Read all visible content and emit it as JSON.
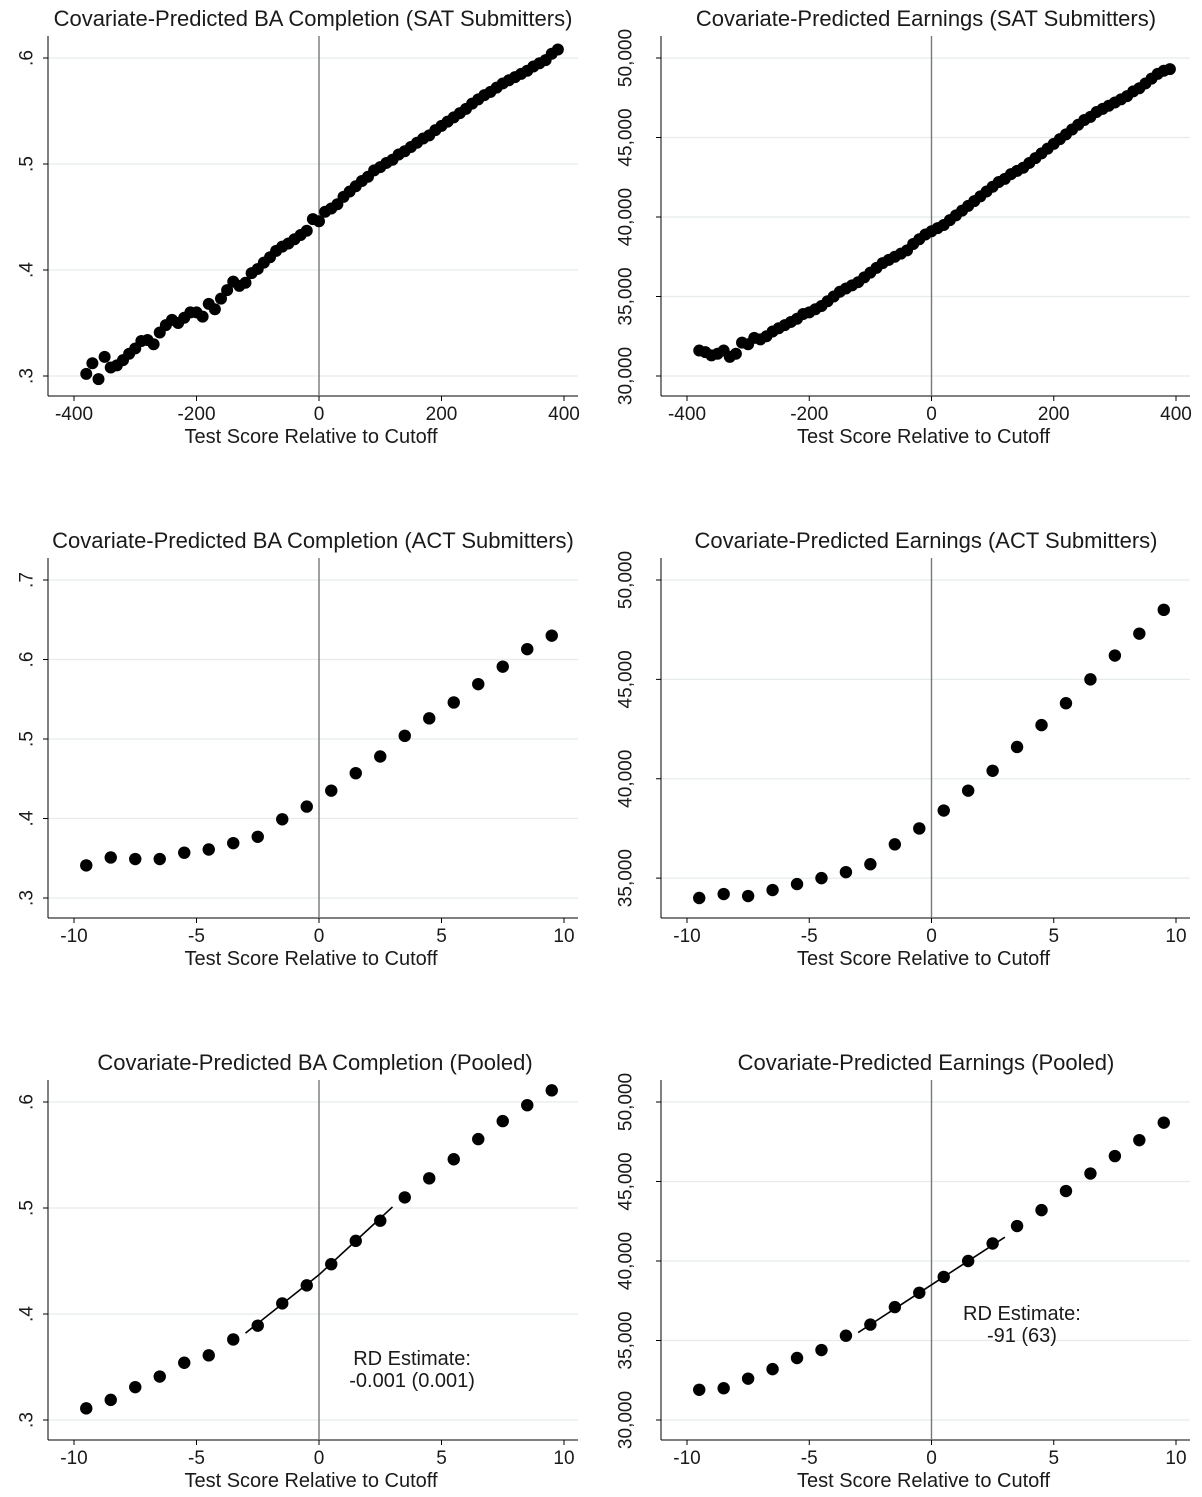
{
  "chart_data": [
    {
      "type": "scatter",
      "title": "Covariate-Predicted BA Completion (SAT Submitters)",
      "xlabel": "Test Score Relative to Cutoff",
      "ylabel": "",
      "xlim": [
        -400,
        400
      ],
      "ylim": [
        0.3,
        0.6
      ],
      "xticks": [
        -400,
        -200,
        0,
        200,
        400
      ],
      "xtick_labels": [
        "-400",
        "-200",
        "0",
        "200",
        "400"
      ],
      "yticks": [
        0.3,
        0.4,
        0.5,
        0.6
      ],
      "ytick_labels": [
        ".3",
        ".4",
        ".5",
        ".6"
      ],
      "grid": true,
      "vline_x": 0,
      "series": [
        {
          "x": [
            -380,
            -370,
            -360,
            -350,
            -340,
            -330,
            -320,
            -310,
            -300,
            -290,
            -280,
            -270,
            -260,
            -250,
            -240,
            -230,
            -220,
            -210,
            -200,
            -190,
            -180,
            -170,
            -160,
            -150,
            -140,
            -130,
            -120,
            -110,
            -100,
            -90,
            -80,
            -70,
            -60,
            -50,
            -40,
            -30,
            -20,
            -10,
            0,
            10,
            20,
            30,
            40,
            50,
            60,
            70,
            80,
            90,
            100,
            110,
            120,
            130,
            140,
            150,
            160,
            170,
            180,
            190,
            200,
            210,
            220,
            230,
            240,
            250,
            260,
            270,
            280,
            290,
            300,
            310,
            320,
            330,
            340,
            350,
            360,
            370,
            380,
            390
          ],
          "y": [
            0.302,
            0.312,
            0.297,
            0.318,
            0.308,
            0.31,
            0.315,
            0.321,
            0.326,
            0.333,
            0.334,
            0.33,
            0.341,
            0.348,
            0.353,
            0.35,
            0.355,
            0.36,
            0.36,
            0.356,
            0.368,
            0.363,
            0.373,
            0.381,
            0.389,
            0.385,
            0.388,
            0.397,
            0.401,
            0.407,
            0.412,
            0.418,
            0.422,
            0.425,
            0.429,
            0.433,
            0.437,
            0.448,
            0.446,
            0.455,
            0.458,
            0.462,
            0.469,
            0.474,
            0.479,
            0.484,
            0.488,
            0.494,
            0.497,
            0.501,
            0.504,
            0.509,
            0.512,
            0.516,
            0.52,
            0.524,
            0.527,
            0.532,
            0.536,
            0.54,
            0.544,
            0.548,
            0.552,
            0.557,
            0.561,
            0.565,
            0.568,
            0.572,
            0.576,
            0.579,
            0.582,
            0.585,
            0.588,
            0.592,
            0.595,
            0.598,
            0.604,
            0.608
          ]
        }
      ]
    },
    {
      "type": "scatter",
      "title": "Covariate-Predicted Earnings (SAT Submitters)",
      "xlabel": "Test Score Relative to Cutoff",
      "ylabel": "",
      "xlim": [
        -400,
        400
      ],
      "ylim": [
        30000,
        50000
      ],
      "xticks": [
        -400,
        -200,
        0,
        200,
        400
      ],
      "xtick_labels": [
        "-400",
        "-200",
        "0",
        "200",
        "400"
      ],
      "yticks": [
        30000,
        35000,
        40000,
        45000,
        50000
      ],
      "ytick_labels": [
        "30,000",
        "35,000",
        "40,000",
        "45,000",
        "50,000"
      ],
      "grid": true,
      "vline_x": 0,
      "series": [
        {
          "x": [
            -380,
            -370,
            -360,
            -350,
            -340,
            -330,
            -320,
            -310,
            -300,
            -290,
            -280,
            -270,
            -260,
            -250,
            -240,
            -230,
            -220,
            -210,
            -200,
            -190,
            -180,
            -170,
            -160,
            -150,
            -140,
            -130,
            -120,
            -110,
            -100,
            -90,
            -80,
            -70,
            -60,
            -50,
            -40,
            -30,
            -20,
            -10,
            0,
            10,
            20,
            30,
            40,
            50,
            60,
            70,
            80,
            90,
            100,
            110,
            120,
            130,
            140,
            150,
            160,
            170,
            180,
            190,
            200,
            210,
            220,
            230,
            240,
            250,
            260,
            270,
            280,
            290,
            300,
            310,
            320,
            330,
            340,
            350,
            360,
            370,
            380,
            390
          ],
          "y": [
            31600,
            31500,
            31300,
            31400,
            31600,
            31200,
            31400,
            32100,
            32000,
            32400,
            32300,
            32500,
            32800,
            33000,
            33200,
            33400,
            33600,
            33900,
            34000,
            34200,
            34400,
            34700,
            35000,
            35300,
            35500,
            35700,
            35900,
            36200,
            36500,
            36800,
            37100,
            37300,
            37500,
            37700,
            37900,
            38300,
            38600,
            38900,
            39100,
            39300,
            39500,
            39800,
            40100,
            40400,
            40700,
            41000,
            41300,
            41600,
            41900,
            42200,
            42400,
            42700,
            42900,
            43100,
            43400,
            43700,
            44000,
            44300,
            44600,
            44900,
            45200,
            45500,
            45800,
            46100,
            46300,
            46600,
            46800,
            47000,
            47200,
            47400,
            47600,
            47900,
            48100,
            48400,
            48700,
            49000,
            49200,
            49300
          ]
        }
      ]
    },
    {
      "type": "scatter",
      "title": "Covariate-Predicted BA Completion (ACT Submitters)",
      "xlabel": "Test Score Relative to Cutoff",
      "ylabel": "",
      "xlim": [
        -10,
        10
      ],
      "ylim": [
        0.3,
        0.7
      ],
      "xticks": [
        -10,
        -5,
        0,
        5,
        10
      ],
      "xtick_labels": [
        "-10",
        "-5",
        "0",
        "5",
        "10"
      ],
      "yticks": [
        0.3,
        0.4,
        0.5,
        0.6,
        0.7
      ],
      "ytick_labels": [
        ".3",
        ".4",
        ".5",
        ".6",
        ".7"
      ],
      "grid": true,
      "vline_x": 0,
      "series": [
        {
          "x": [
            -9.5,
            -8.5,
            -7.5,
            -6.5,
            -5.5,
            -4.5,
            -3.5,
            -2.5,
            -1.5,
            -0.5,
            0.5,
            1.5,
            2.5,
            3.5,
            4.5,
            5.5,
            6.5,
            7.5,
            8.5,
            9.5
          ],
          "y": [
            0.341,
            0.351,
            0.349,
            0.349,
            0.357,
            0.361,
            0.369,
            0.377,
            0.399,
            0.415,
            0.435,
            0.457,
            0.478,
            0.504,
            0.526,
            0.546,
            0.569,
            0.591,
            0.613,
            0.63
          ]
        }
      ]
    },
    {
      "type": "scatter",
      "title": "Covariate-Predicted Earnings (ACT Submitters)",
      "xlabel": "Test Score Relative to Cutoff",
      "ylabel": "",
      "xlim": [
        -10,
        10
      ],
      "ylim": [
        34000,
        50000
      ],
      "xticks": [
        -10,
        -5,
        0,
        5,
        10
      ],
      "xtick_labels": [
        "-10",
        "-5",
        "0",
        "5",
        "10"
      ],
      "yticks": [
        35000,
        40000,
        45000,
        50000
      ],
      "ytick_labels": [
        "35,000",
        "40,000",
        "45,000",
        "50,000"
      ],
      "grid": true,
      "vline_x": 0,
      "series": [
        {
          "x": [
            -9.5,
            -8.5,
            -7.5,
            -6.5,
            -5.5,
            -4.5,
            -3.5,
            -2.5,
            -1.5,
            -0.5,
            0.5,
            1.5,
            2.5,
            3.5,
            4.5,
            5.5,
            6.5,
            7.5,
            8.5,
            9.5
          ],
          "y": [
            34000,
            34200,
            34100,
            34400,
            34700,
            35000,
            35300,
            35700,
            36700,
            37500,
            38400,
            39400,
            40400,
            41600,
            42700,
            43800,
            45000,
            46200,
            47300,
            48500
          ]
        }
      ]
    },
    {
      "type": "scatter",
      "title": "Covariate-Predicted BA Completion (Pooled)",
      "xlabel": "Test Score Relative to Cutoff",
      "ylabel": "",
      "xlim": [
        -10,
        10
      ],
      "ylim": [
        0.3,
        0.6
      ],
      "xticks": [
        -10,
        -5,
        0,
        5,
        10
      ],
      "xtick_labels": [
        "-10",
        "-5",
        "0",
        "5",
        "10"
      ],
      "yticks": [
        0.3,
        0.4,
        0.5,
        0.6
      ],
      "ytick_labels": [
        ".3",
        ".4",
        ".5",
        ".6"
      ],
      "grid": true,
      "vline_x": 0,
      "annotation": [
        "RD Estimate:",
        "-0.001 (0.001)"
      ],
      "annotation_pos": [
        3.8,
        0.352
      ],
      "fit_lines": [
        {
          "x": [
            -3,
            0
          ],
          "y": [
            0.382,
            0.437
          ]
        },
        {
          "x": [
            0,
            3
          ],
          "y": [
            0.437,
            0.501
          ]
        }
      ],
      "series": [
        {
          "x": [
            -9.5,
            -8.5,
            -7.5,
            -6.5,
            -5.5,
            -4.5,
            -3.5,
            -2.5,
            -1.5,
            -0.5,
            0.5,
            1.5,
            2.5,
            3.5,
            4.5,
            5.5,
            6.5,
            7.5,
            8.5,
            9.5
          ],
          "y": [
            0.311,
            0.319,
            0.331,
            0.341,
            0.354,
            0.361,
            0.376,
            0.389,
            0.41,
            0.427,
            0.447,
            0.469,
            0.488,
            0.51,
            0.528,
            0.546,
            0.565,
            0.582,
            0.597,
            0.611
          ]
        }
      ]
    },
    {
      "type": "scatter",
      "title": "Covariate-Predicted Earnings (Pooled)",
      "xlabel": "Test Score Relative to Cutoff",
      "ylabel": "",
      "xlim": [
        -10,
        10
      ],
      "ylim": [
        30000,
        50000
      ],
      "xticks": [
        -10,
        -5,
        0,
        5,
        10
      ],
      "xtick_labels": [
        "-10",
        "-5",
        "0",
        "5",
        "10"
      ],
      "yticks": [
        30000,
        35000,
        40000,
        45000,
        50000
      ],
      "ytick_labels": [
        "30,000",
        "35,000",
        "40,000",
        "45,000",
        "50,000"
      ],
      "grid": true,
      "vline_x": 0,
      "annotation": [
        "RD Estimate:",
        "-91 (63)"
      ],
      "annotation_pos": [
        3.7,
        36300
      ],
      "fit_lines": [
        {
          "x": [
            -3,
            0
          ],
          "y": [
            35500,
            38500
          ]
        },
        {
          "x": [
            0,
            3
          ],
          "y": [
            38500,
            41500
          ]
        }
      ],
      "series": [
        {
          "x": [
            -9.5,
            -8.5,
            -7.5,
            -6.5,
            -5.5,
            -4.5,
            -3.5,
            -2.5,
            -1.5,
            -0.5,
            0.5,
            1.5,
            2.5,
            3.5,
            4.5,
            5.5,
            6.5,
            7.5,
            8.5,
            9.5
          ],
          "y": [
            31900,
            32000,
            32600,
            33200,
            33900,
            34400,
            35300,
            36000,
            37100,
            38000,
            39000,
            40000,
            41100,
            42200,
            43200,
            44400,
            45500,
            46600,
            47600,
            48700
          ]
        }
      ]
    }
  ]
}
